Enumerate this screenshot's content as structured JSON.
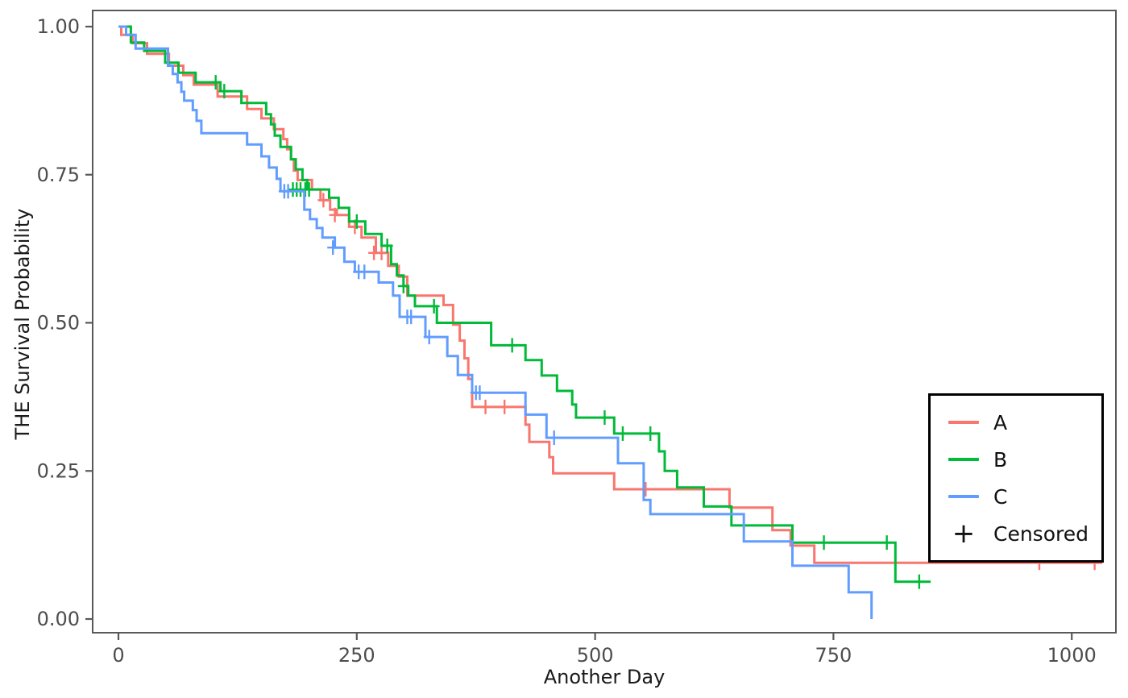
{
  "chart_data": {
    "type": "line",
    "subtype": "kaplan-meier-step",
    "title": "",
    "xlabel": "Another Day",
    "ylabel": "THE Survival Probability",
    "xlim": [
      -28,
      1047
    ],
    "ylim": [
      0,
      1.02
    ],
    "grid": "off",
    "x_ticks": [
      0,
      250,
      500,
      750,
      1000
    ],
    "x_tick_labels": [
      "0",
      "250",
      "500",
      "750",
      "1000"
    ],
    "y_ticks": [
      0,
      0.25,
      0.5,
      0.75,
      1.0
    ],
    "y_tick_labels": [
      "0.00",
      "0.25",
      "0.50",
      "0.75",
      "1.00"
    ],
    "legend_position": "right-inside",
    "censored_marker": "+",
    "series": [
      {
        "name": "A",
        "color": "#F8766D",
        "start": [
          0,
          1.0
        ],
        "end_time": 1032,
        "steps": [
          [
            3,
            0.986
          ],
          [
            15,
            0.972
          ],
          [
            30,
            0.954
          ],
          [
            53,
            0.934
          ],
          [
            68,
            0.918
          ],
          [
            79,
            0.902
          ],
          [
            104,
            0.882
          ],
          [
            135,
            0.861
          ],
          [
            150,
            0.845
          ],
          [
            163,
            0.827
          ],
          [
            173,
            0.81
          ],
          [
            177,
            0.793
          ],
          [
            181,
            0.776
          ],
          [
            184,
            0.757
          ],
          [
            188,
            0.741
          ],
          [
            203,
            0.725
          ],
          [
            212,
            0.707
          ],
          [
            222,
            0.691
          ],
          [
            229,
            0.682
          ],
          [
            242,
            0.662
          ],
          [
            255,
            0.644
          ],
          [
            270,
            0.618
          ],
          [
            283,
            0.596
          ],
          [
            294,
            0.578
          ],
          [
            303,
            0.546
          ],
          [
            341,
            0.53
          ],
          [
            351,
            0.497
          ],
          [
            358,
            0.47
          ],
          [
            363,
            0.44
          ],
          [
            367,
            0.405
          ],
          [
            371,
            0.358
          ],
          [
            427,
            0.328
          ],
          [
            431,
            0.299
          ],
          [
            452,
            0.273
          ],
          [
            456,
            0.246
          ],
          [
            520,
            0.219
          ],
          [
            641,
            0.188
          ],
          [
            686,
            0.15
          ],
          [
            705,
            0.124
          ],
          [
            730,
            0.095
          ]
        ],
        "censored": [
          [
            215,
            0.707
          ],
          [
            227,
            0.682
          ],
          [
            248,
            0.662
          ],
          [
            268,
            0.618
          ],
          [
            276,
            0.618
          ],
          [
            385,
            0.358
          ],
          [
            405,
            0.358
          ],
          [
            553,
            0.219
          ],
          [
            966,
            0.095
          ],
          [
            1024,
            0.095
          ]
        ]
      },
      {
        "name": "B",
        "color": "#00BA38",
        "start": [
          0,
          1.0
        ],
        "end_time": 852,
        "steps": [
          [
            13,
            0.973
          ],
          [
            27,
            0.959
          ],
          [
            49,
            0.939
          ],
          [
            63,
            0.922
          ],
          [
            81,
            0.906
          ],
          [
            107,
            0.891
          ],
          [
            129,
            0.871
          ],
          [
            155,
            0.852
          ],
          [
            160,
            0.835
          ],
          [
            164,
            0.816
          ],
          [
            170,
            0.797
          ],
          [
            181,
            0.776
          ],
          [
            186,
            0.759
          ],
          [
            193,
            0.741
          ],
          [
            198,
            0.725
          ],
          [
            221,
            0.711
          ],
          [
            231,
            0.694
          ],
          [
            242,
            0.671
          ],
          [
            259,
            0.65
          ],
          [
            276,
            0.63
          ],
          [
            286,
            0.599
          ],
          [
            292,
            0.58
          ],
          [
            299,
            0.562
          ],
          [
            304,
            0.546
          ],
          [
            311,
            0.528
          ],
          [
            334,
            0.5
          ],
          [
            391,
            0.462
          ],
          [
            427,
            0.437
          ],
          [
            444,
            0.411
          ],
          [
            460,
            0.385
          ],
          [
            476,
            0.362
          ],
          [
            480,
            0.34
          ],
          [
            520,
            0.313
          ],
          [
            567,
            0.283
          ],
          [
            573,
            0.25
          ],
          [
            586,
            0.222
          ],
          [
            614,
            0.19
          ],
          [
            643,
            0.158
          ],
          [
            707,
            0.129
          ],
          [
            815,
            0.063
          ]
        ],
        "censored": [
          [
            102,
            0.906
          ],
          [
            111,
            0.891
          ],
          [
            183,
            0.725
          ],
          [
            187,
            0.725
          ],
          [
            191,
            0.725
          ],
          [
            196,
            0.725
          ],
          [
            200,
            0.725
          ],
          [
            250,
            0.671
          ],
          [
            282,
            0.63
          ],
          [
            299,
            0.562
          ],
          [
            331,
            0.528
          ],
          [
            413,
            0.462
          ],
          [
            510,
            0.34
          ],
          [
            529,
            0.313
          ],
          [
            558,
            0.313
          ],
          [
            740,
            0.129
          ],
          [
            806,
            0.129
          ],
          [
            840,
            0.063
          ]
        ]
      },
      {
        "name": "C",
        "color": "#619CFF",
        "start": [
          0,
          1.0
        ],
        "end_time": 790,
        "steps": [
          [
            8,
            0.986
          ],
          [
            18,
            0.963
          ],
          [
            52,
            0.934
          ],
          [
            57,
            0.92
          ],
          [
            62,
            0.906
          ],
          [
            66,
            0.89
          ],
          [
            69,
            0.875
          ],
          [
            78,
            0.859
          ],
          [
            82,
            0.841
          ],
          [
            87,
            0.82
          ],
          [
            135,
            0.801
          ],
          [
            150,
            0.781
          ],
          [
            158,
            0.762
          ],
          [
            166,
            0.743
          ],
          [
            170,
            0.722
          ],
          [
            195,
            0.691
          ],
          [
            201,
            0.675
          ],
          [
            208,
            0.66
          ],
          [
            214,
            0.644
          ],
          [
            227,
            0.627
          ],
          [
            237,
            0.603
          ],
          [
            248,
            0.586
          ],
          [
            273,
            0.568
          ],
          [
            288,
            0.546
          ],
          [
            295,
            0.51
          ],
          [
            322,
            0.476
          ],
          [
            345,
            0.444
          ],
          [
            356,
            0.412
          ],
          [
            371,
            0.382
          ],
          [
            427,
            0.345
          ],
          [
            449,
            0.306
          ],
          [
            524,
            0.263
          ],
          [
            551,
            0.201
          ],
          [
            558,
            0.177
          ],
          [
            656,
            0.131
          ],
          [
            707,
            0.09
          ],
          [
            766,
            0.045
          ],
          [
            790,
            0.0
          ]
        ],
        "censored": [
          [
            174,
            0.722
          ],
          [
            178,
            0.722
          ],
          [
            225,
            0.627
          ],
          [
            252,
            0.586
          ],
          [
            258,
            0.586
          ],
          [
            303,
            0.51
          ],
          [
            307,
            0.51
          ],
          [
            326,
            0.476
          ],
          [
            375,
            0.382
          ],
          [
            379,
            0.382
          ],
          [
            457,
            0.306
          ]
        ]
      }
    ]
  },
  "legend": {
    "items": [
      {
        "label": "A",
        "type": "line",
        "color": "#F8766D"
      },
      {
        "label": "B",
        "type": "line",
        "color": "#00BA38"
      },
      {
        "label": "C",
        "type": "line",
        "color": "#619CFF"
      },
      {
        "label": "Censored",
        "type": "plus",
        "symbol": "+",
        "color": "#111111"
      }
    ]
  },
  "colors": {
    "panel_border": "#595959",
    "tick": "#595959",
    "tick_label": "#4d4d4d",
    "axis_title": "#1a1a1a",
    "background": "#ffffff"
  }
}
